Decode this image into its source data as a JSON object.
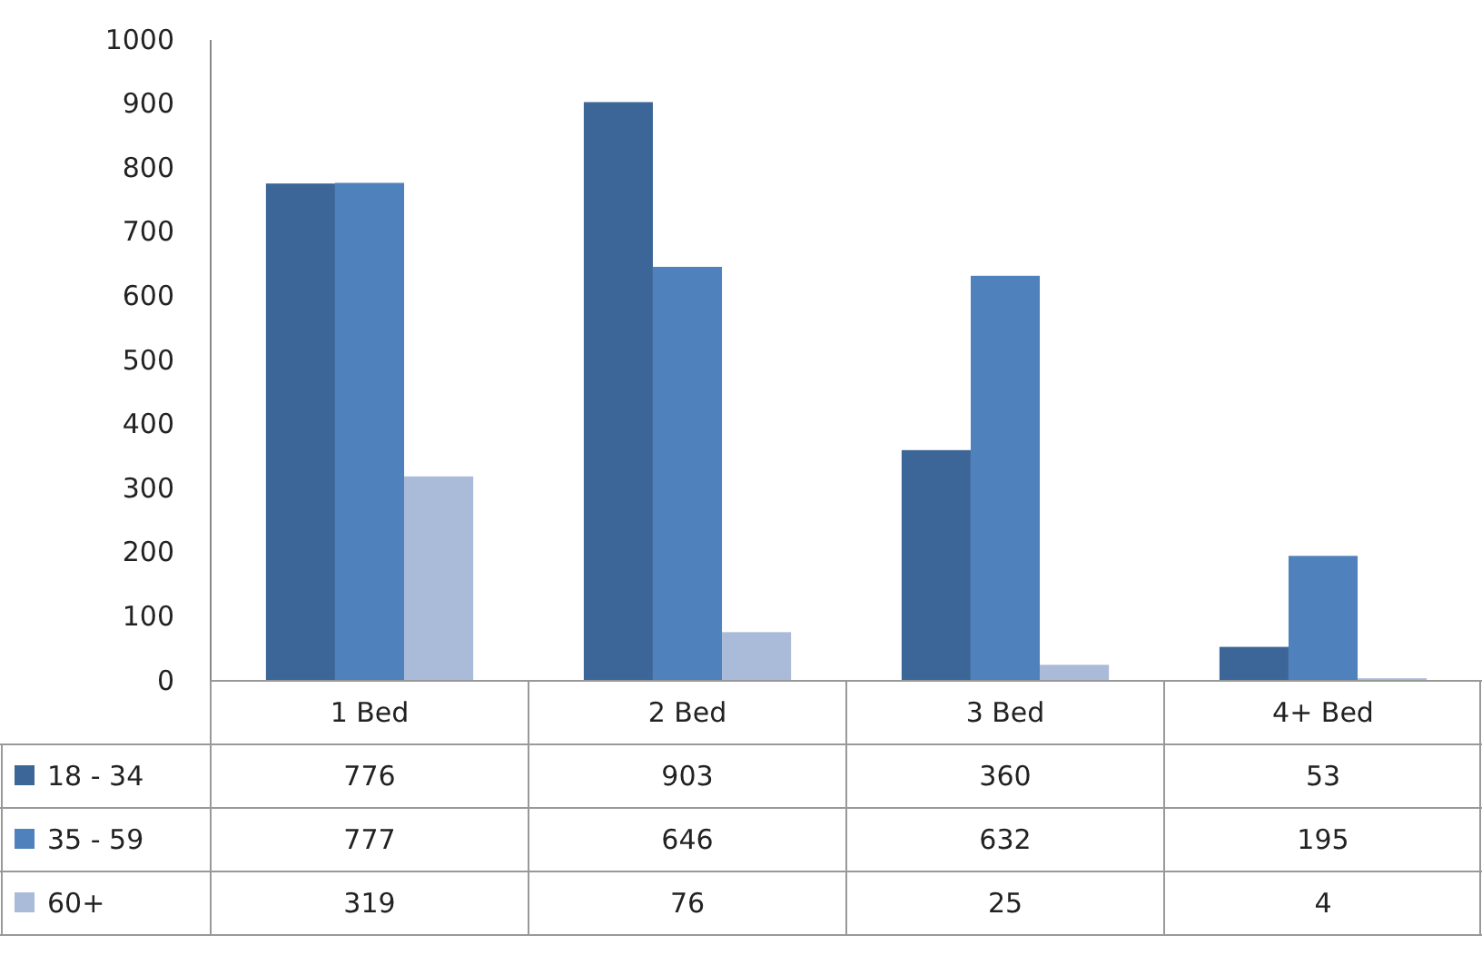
{
  "chart_data": {
    "type": "bar",
    "categories": [
      "1 Bed",
      "2 Bed",
      "3 Bed",
      "4+ Bed"
    ],
    "series": [
      {
        "name": "18 - 34",
        "color": "#3d6698",
        "values": [
          776,
          903,
          360,
          53
        ]
      },
      {
        "name": "35 - 59",
        "color": "#4f81bd",
        "values": [
          777,
          646,
          632,
          195
        ]
      },
      {
        "name": "60+",
        "color": "#a9bbd9",
        "values": [
          319,
          76,
          25,
          4
        ]
      }
    ],
    "ylim": [
      0,
      1000
    ],
    "yticks": [
      0,
      100,
      200,
      300,
      400,
      500,
      600,
      700,
      800,
      900,
      1000
    ],
    "grid": false,
    "legend": "bottom left",
    "data_labels": true
  }
}
